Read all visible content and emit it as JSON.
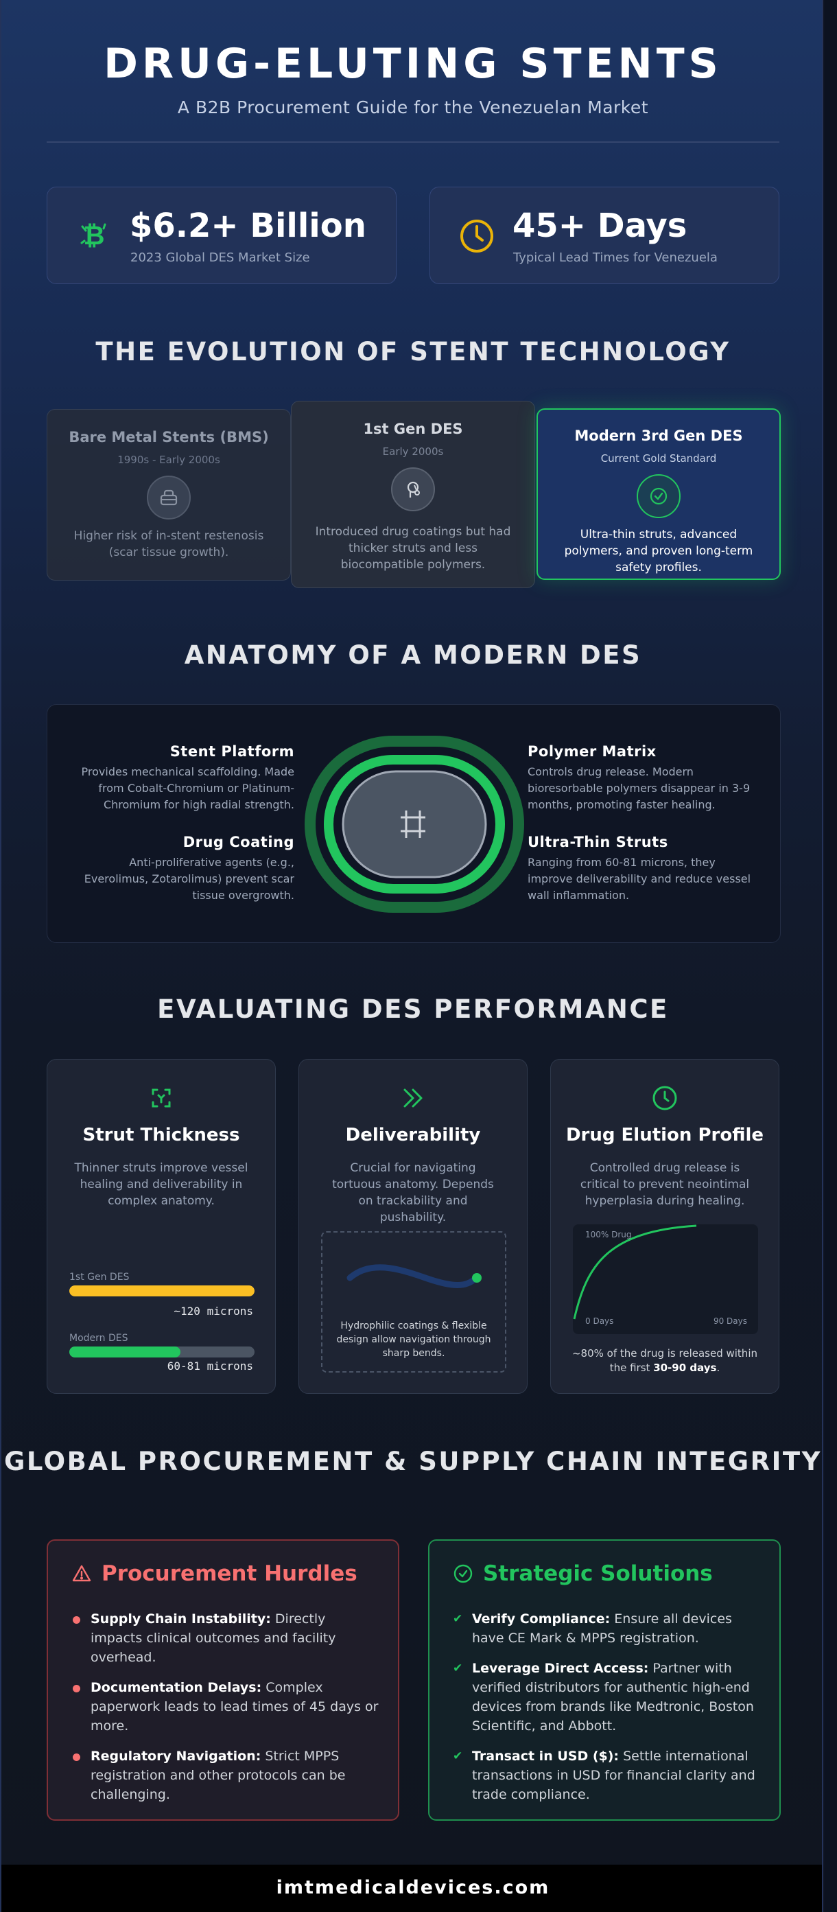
{
  "header": {
    "title": "DRUG-ELUTING STENTS",
    "subtitle": "A B2B Procurement Guide for the Venezuelan Market"
  },
  "stats": [
    {
      "value": "$6.2+ Billion",
      "label": "2023 Global DES Market Size",
      "icon": "bitcoin-sign-icon",
      "color": "#22c55e"
    },
    {
      "value": "45+ Days",
      "label": "Typical Lead Times for Venezuela",
      "icon": "clock-icon",
      "color": "#eab308"
    }
  ],
  "evolution": {
    "title": "THE EVOLUTION OF STENT TECHNOLOGY",
    "cards": [
      {
        "name": "Bare Metal Stents (BMS)",
        "era": "1990s - Early 2000s",
        "icon": "stent-box-icon",
        "desc": "Higher risk of in-stent restenosis (scar tissue growth)."
      },
      {
        "name": "1st Gen DES",
        "era": "Early 2000s",
        "icon": "flask-icon",
        "desc": "Introduced drug coatings but had thicker struts and less biocompatible polymers."
      },
      {
        "name": "Modern 3rd Gen DES",
        "era": "Current Gold Standard",
        "icon": "check-circle-icon",
        "desc": "Ultra-thin struts, advanced polymers, and proven long-term safety profiles."
      }
    ]
  },
  "anatomy": {
    "title": "ANATOMY OF A MODERN DES",
    "items": [
      {
        "title": "Stent Platform",
        "desc": "Provides mechanical scaffolding. Made from Cobalt-Chromium or Platinum-Chromium for high radial strength."
      },
      {
        "title": "Drug Coating",
        "desc": "Anti-proliferative agents (e.g., Everolimus, Zotarolimus) prevent scar tissue overgrowth."
      },
      {
        "title": "Polymer Matrix",
        "desc": "Controls drug release. Modern bioresorbable polymers disappear in 3-9 months, promoting faster healing."
      },
      {
        "title": "Ultra-Thin Struts",
        "desc": "Ranging from 60-81 microns, they improve deliverability and reduce vessel wall inflammation."
      }
    ]
  },
  "performance": {
    "title": "EVALUATING DES PERFORMANCE",
    "strut": {
      "title": "Strut Thickness",
      "desc": "Thinner struts improve vessel healing and deliverability in complex anatomy.",
      "bars": [
        {
          "label": "1st Gen DES",
          "value": "~120 microns",
          "fill": 1.0,
          "color": "#fbbf24"
        },
        {
          "label": "Modern DES",
          "value": "60-81 microns",
          "fill": 0.6,
          "color": "#22c55e"
        }
      ]
    },
    "deliverability": {
      "title": "Deliverability",
      "desc": "Crucial for navigating tortuous anatomy. Depends on trackability and pushability.",
      "note": "Hydrophilic coatings & flexible design allow navigation through sharp bends."
    },
    "elution": {
      "title": "Drug Elution Profile",
      "desc": "Controlled drug release is critical to prevent neointimal hyperplasia during healing.",
      "chart_label_top": "100% Drug",
      "chart_label_start": "0 Days",
      "chart_label_end": "90 Days",
      "note_pre": "~80% of the drug is released within the first ",
      "note_bold": "30-90 days",
      "note_post": "."
    }
  },
  "procurement": {
    "title": "GLOBAL PROCUREMENT & SUPPLY CHAIN INTEGRITY",
    "hurdles": {
      "title": "Procurement Hurdles",
      "color": "#f87171",
      "items": [
        {
          "bold": "Supply Chain Instability:",
          "text": " Directly impacts clinical outcomes and facility overhead."
        },
        {
          "bold": "Documentation Delays:",
          "text": " Complex paperwork leads to lead times of 45 days or more."
        },
        {
          "bold": "Regulatory Navigation:",
          "text": " Strict MPPS registration and other protocols can be challenging."
        }
      ]
    },
    "solutions": {
      "title": "Strategic Solutions",
      "color": "#22c55e",
      "items": [
        {
          "bold": "Verify Compliance:",
          "text": " Ensure all devices have CE Mark & MPPS registration."
        },
        {
          "bold": "Leverage Direct Access:",
          "text": " Partner with verified distributors for authentic high-end devices from brands like Medtronic, Boston Scientific, and Abbott."
        },
        {
          "bold": "Transact in USD ($):",
          "text": " Settle international transactions in USD for financial clarity and trade compliance."
        }
      ]
    }
  },
  "footer": {
    "site": "imtmedicaldevices.com"
  }
}
